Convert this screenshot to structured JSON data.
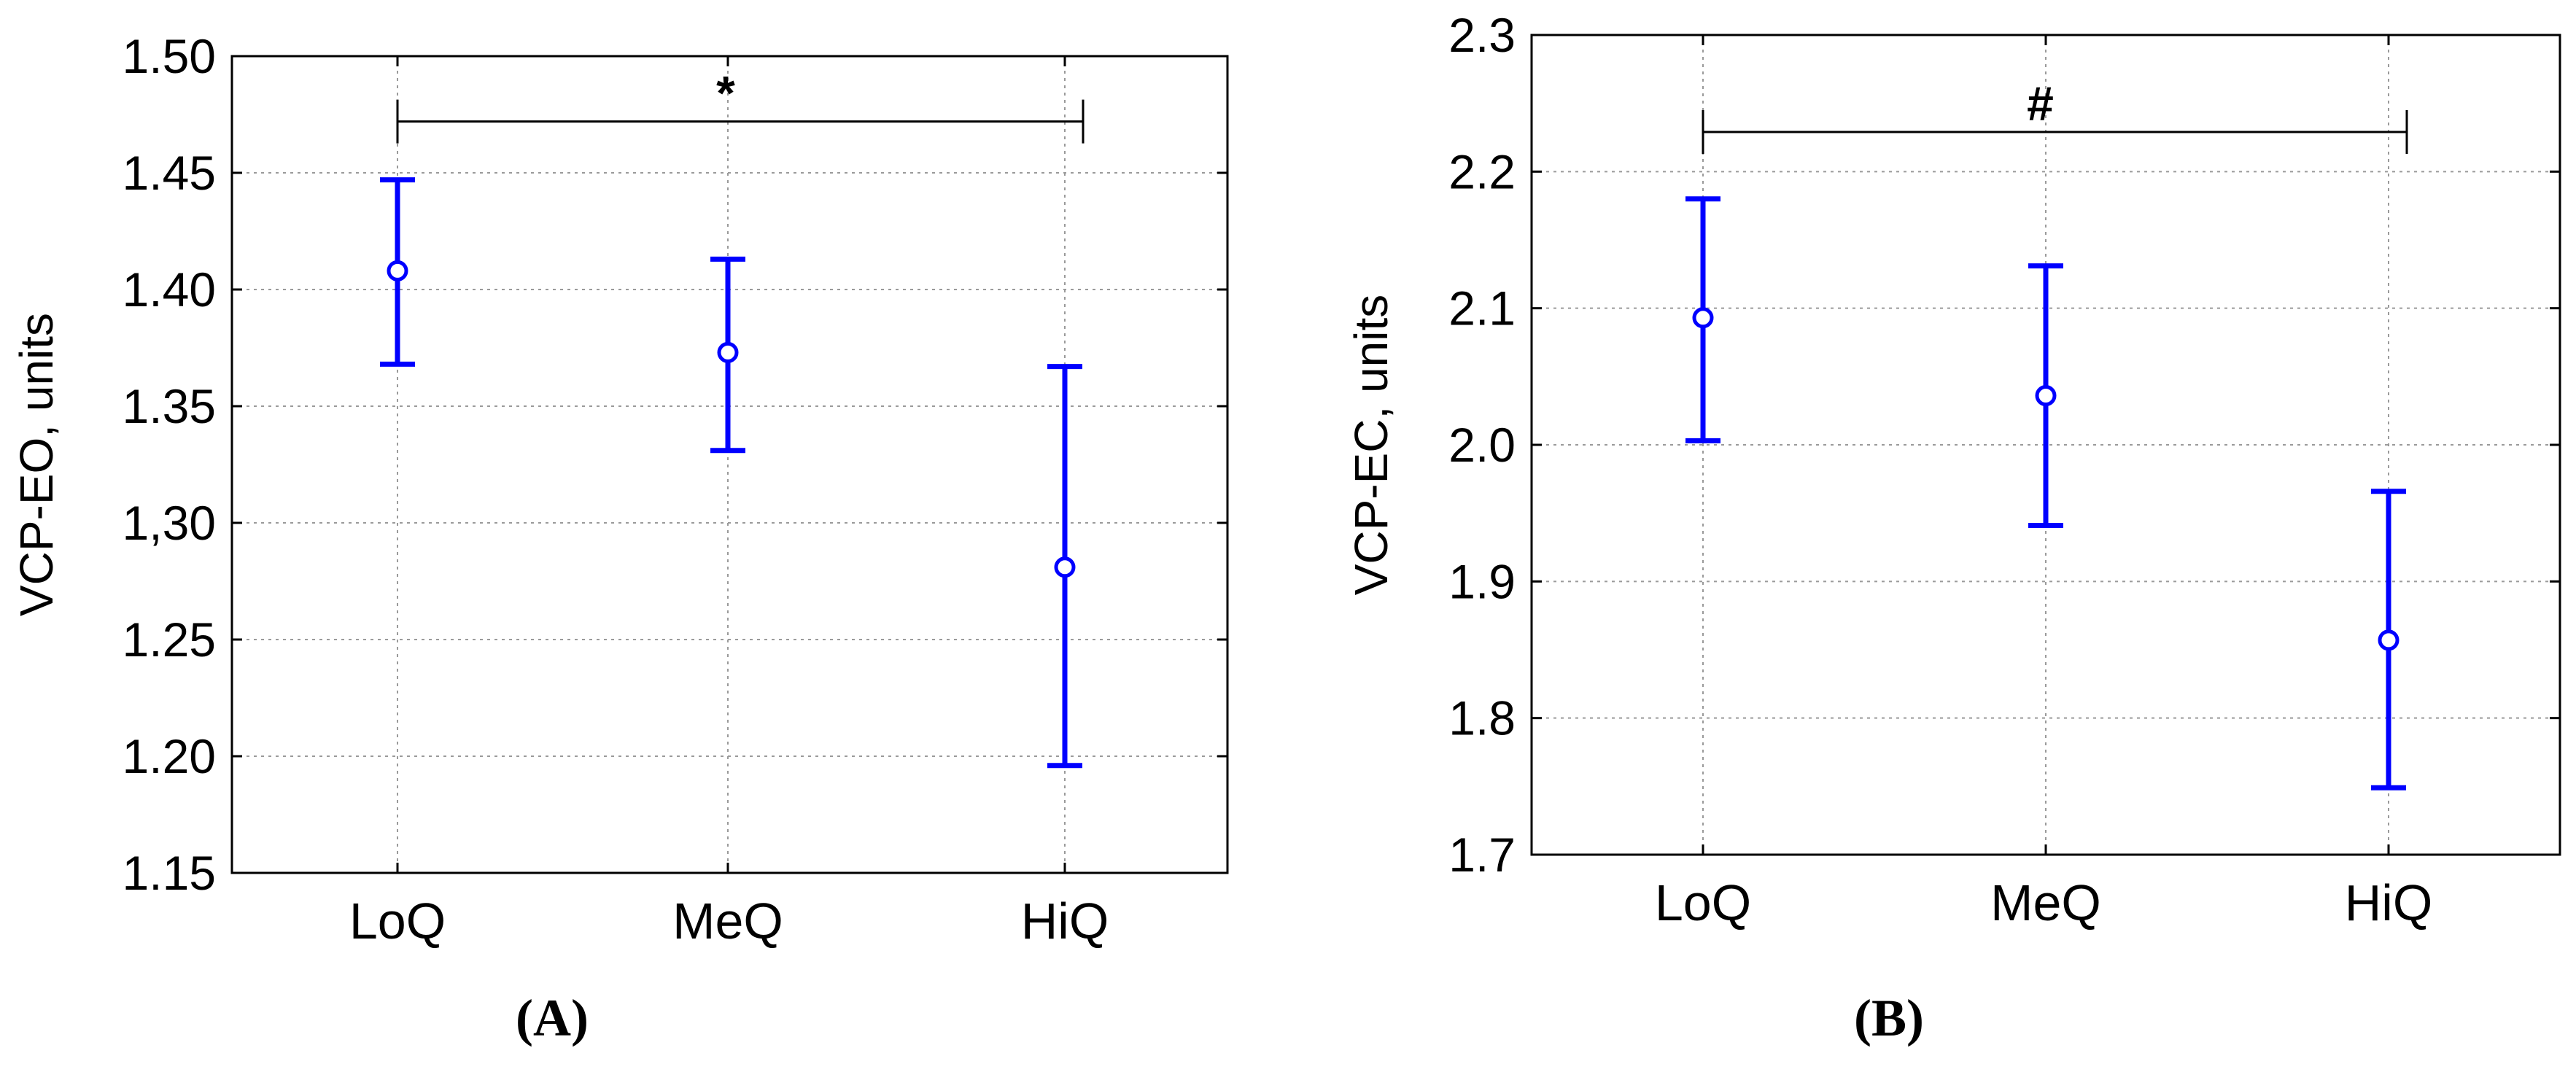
{
  "chart_data": [
    {
      "type": "scatter",
      "panel_label": "(A)",
      "ylabel": "VCP-EO, units",
      "xlabel": "",
      "categories": [
        "LoQ",
        "MeQ",
        "HiQ"
      ],
      "ylim": [
        1.15,
        1.5
      ],
      "yticks": [
        1.15,
        1.2,
        1.25,
        1.3,
        1.35,
        1.4,
        1.45,
        1.5
      ],
      "ytick_labels": [
        "1.15",
        "1.20",
        "1.25",
        "1,30",
        "1.35",
        "1.40",
        "1.45",
        "1.50"
      ],
      "grid": true,
      "series": [
        {
          "mean": [
            1.408,
            1.373,
            1.281
          ],
          "lower": [
            1.368,
            1.331,
            1.196
          ],
          "upper": [
            1.447,
            1.413,
            1.367
          ]
        }
      ],
      "significance": {
        "from": "LoQ",
        "to": "HiQ",
        "label": "*",
        "y": 1.472
      },
      "color": "#0000ff"
    },
    {
      "type": "scatter",
      "panel_label": "(B)",
      "ylabel": "VCP-EC, units",
      "xlabel": "",
      "categories": [
        "LoQ",
        "MeQ",
        "HiQ"
      ],
      "ylim": [
        1.7,
        2.3
      ],
      "yticks": [
        1.7,
        1.8,
        1.9,
        2.0,
        2.1,
        2.2,
        2.3
      ],
      "ytick_labels": [
        "1.7",
        "1.8",
        "1.9",
        "2.0",
        "2.1",
        "2.2",
        "2.3"
      ],
      "grid": true,
      "series": [
        {
          "mean": [
            2.093,
            2.036,
            1.857
          ],
          "lower": [
            2.003,
            1.941,
            1.749
          ],
          "upper": [
            2.18,
            2.131,
            1.966
          ]
        }
      ],
      "significance": {
        "from": "LoQ",
        "to": "HiQ",
        "label": "#",
        "y": 2.229
      },
      "color": "#0000ff"
    }
  ]
}
